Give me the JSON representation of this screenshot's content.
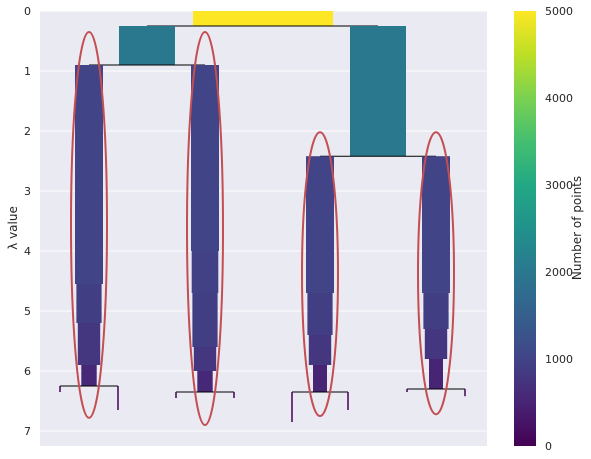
{
  "chart_data": {
    "type": "condensed-tree",
    "ylabel": "λ value",
    "ylim": [
      7.25,
      0
    ],
    "yticks": [
      0,
      1,
      2,
      3,
      4,
      5,
      6,
      7
    ],
    "grid": true,
    "colorbar": {
      "label": "Number of points",
      "range": [
        0,
        5000
      ],
      "ticks": [
        0,
        1000,
        2000,
        3000,
        4000,
        5000
      ],
      "colormap": "viridis"
    },
    "root": {
      "points": 5000,
      "lambda_start": 0,
      "lambda_split": 0.25
    },
    "branches": [
      {
        "name": "left-parent",
        "points": 2000,
        "lambda_start": 0.25,
        "lambda_split": 0.9
      },
      {
        "name": "right-parent",
        "points": 2000,
        "lambda_start": 0.25,
        "lambda_split": 2.42
      }
    ],
    "clusters": [
      {
        "name": "cluster-1",
        "selected": true,
        "lambda_start": 0.9,
        "lambda_end": 6.25,
        "profile": [
          [
            0.9,
            1000
          ],
          [
            3.0,
            1000
          ],
          [
            4.55,
            900
          ],
          [
            5.2,
            800
          ],
          [
            5.9,
            550
          ],
          [
            6.25,
            250
          ]
        ],
        "ellipse_lambda": [
          0.35,
          6.78
        ]
      },
      {
        "name": "cluster-2",
        "selected": true,
        "lambda_start": 0.9,
        "lambda_end": 6.35,
        "profile": [
          [
            0.9,
            1000
          ],
          [
            3.4,
            1000
          ],
          [
            4.0,
            950
          ],
          [
            4.7,
            900
          ],
          [
            5.6,
            800
          ],
          [
            6.0,
            550
          ],
          [
            6.35,
            250
          ]
        ],
        "ellipse_lambda": [
          0.35,
          6.9
        ]
      },
      {
        "name": "cluster-3",
        "selected": true,
        "lambda_start": 2.42,
        "lambda_end": 6.35,
        "profile": [
          [
            2.42,
            1000
          ],
          [
            3.7,
            1000
          ],
          [
            4.7,
            900
          ],
          [
            5.4,
            800
          ],
          [
            5.9,
            500
          ],
          [
            6.35,
            250
          ]
        ],
        "ellipse_lambda": [
          2.02,
          6.75
        ]
      },
      {
        "name": "cluster-4",
        "selected": true,
        "lambda_start": 2.42,
        "lambda_end": 6.3,
        "profile": [
          [
            2.42,
            1000
          ],
          [
            4.0,
            1000
          ],
          [
            4.7,
            900
          ],
          [
            5.3,
            800
          ],
          [
            5.8,
            500
          ],
          [
            6.3,
            250
          ]
        ],
        "ellipse_lambda": [
          2.02,
          6.72
        ]
      }
    ],
    "leaf_splits": [
      {
        "cluster": "cluster-1",
        "lambda": 6.25,
        "left_to": 6.35,
        "right_to": 6.65
      },
      {
        "cluster": "cluster-2",
        "lambda": 6.35,
        "left_to": 6.45,
        "right_to": 6.45
      },
      {
        "cluster": "cluster-3",
        "lambda": 6.35,
        "left_to": 6.85,
        "right_to": 6.65
      },
      {
        "cluster": "cluster-4",
        "lambda": 6.3,
        "left_to": 6.35,
        "right_to": 6.42
      }
    ],
    "ellipse_color": "#c44e52",
    "background": "#eaeaf2",
    "grid_color": "#ffffff"
  }
}
